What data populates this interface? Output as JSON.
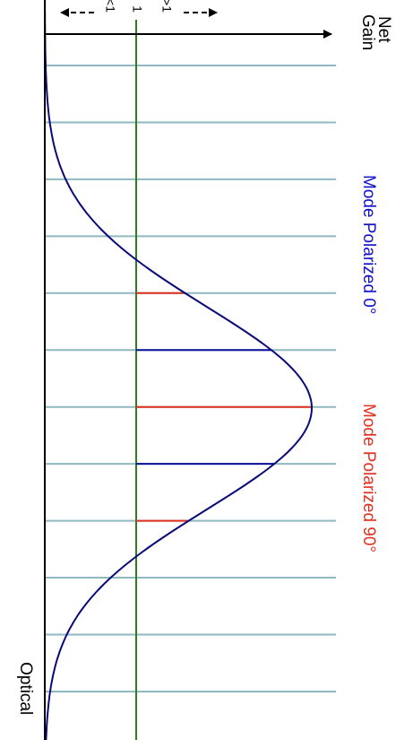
{
  "labels": {
    "net_gain": [
      "Net",
      "Gain"
    ],
    "less": "<1",
    "one": "1",
    "more": ">1",
    "mode_0": "Mode Polarized 0°",
    "mode_90": "Mode Polarized 90°",
    "axis": "Optical"
  }
}
